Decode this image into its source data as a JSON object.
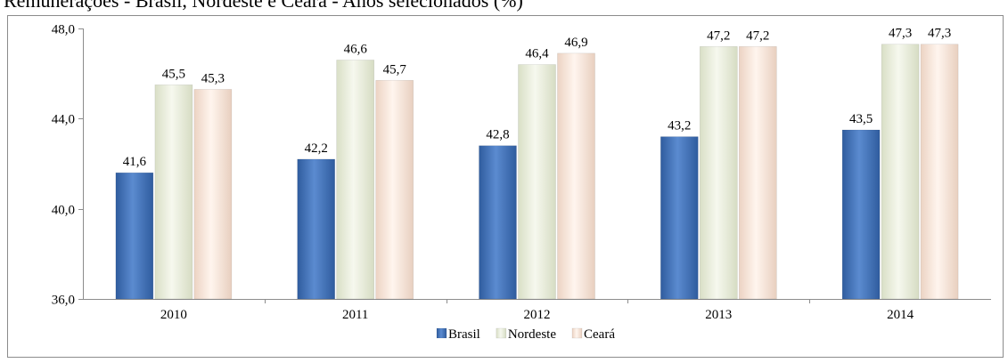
{
  "chart_data": {
    "type": "bar",
    "title": "Remunerações - Brasil, Nordeste e Ceará - Anos selecionados (%)",
    "xlabel": "",
    "ylabel": "",
    "categories": [
      "2010",
      "2011",
      "2012",
      "2013",
      "2014"
    ],
    "series": [
      {
        "name": "Brasil",
        "values": [
          41.6,
          42.2,
          42.8,
          43.2,
          43.5
        ],
        "labels": [
          "41,6",
          "42,2",
          "42,8",
          "43,2",
          "43,5"
        ]
      },
      {
        "name": "Nordeste",
        "values": [
          45.5,
          46.6,
          46.4,
          47.2,
          47.3
        ],
        "labels": [
          "45,5",
          "46,6",
          "46,4",
          "47,2",
          "47,3"
        ]
      },
      {
        "name": "Ceará",
        "values": [
          45.3,
          45.7,
          46.9,
          47.2,
          47.3
        ],
        "labels": [
          "45,3",
          "45,7",
          "46,9",
          "47,2",
          "47,3"
        ]
      }
    ],
    "ylim": [
      36,
      48
    ],
    "yticks": [
      36,
      40,
      44,
      48
    ],
    "ytick_labels": [
      "36,0",
      "40,0",
      "44,0",
      "48,0"
    ],
    "grid": false,
    "legend_position": "bottom-center",
    "colors": {
      "Brasil": "#4a78bd",
      "Nordeste": "#eef2e2",
      "Ceará": "#fbeee4"
    }
  }
}
